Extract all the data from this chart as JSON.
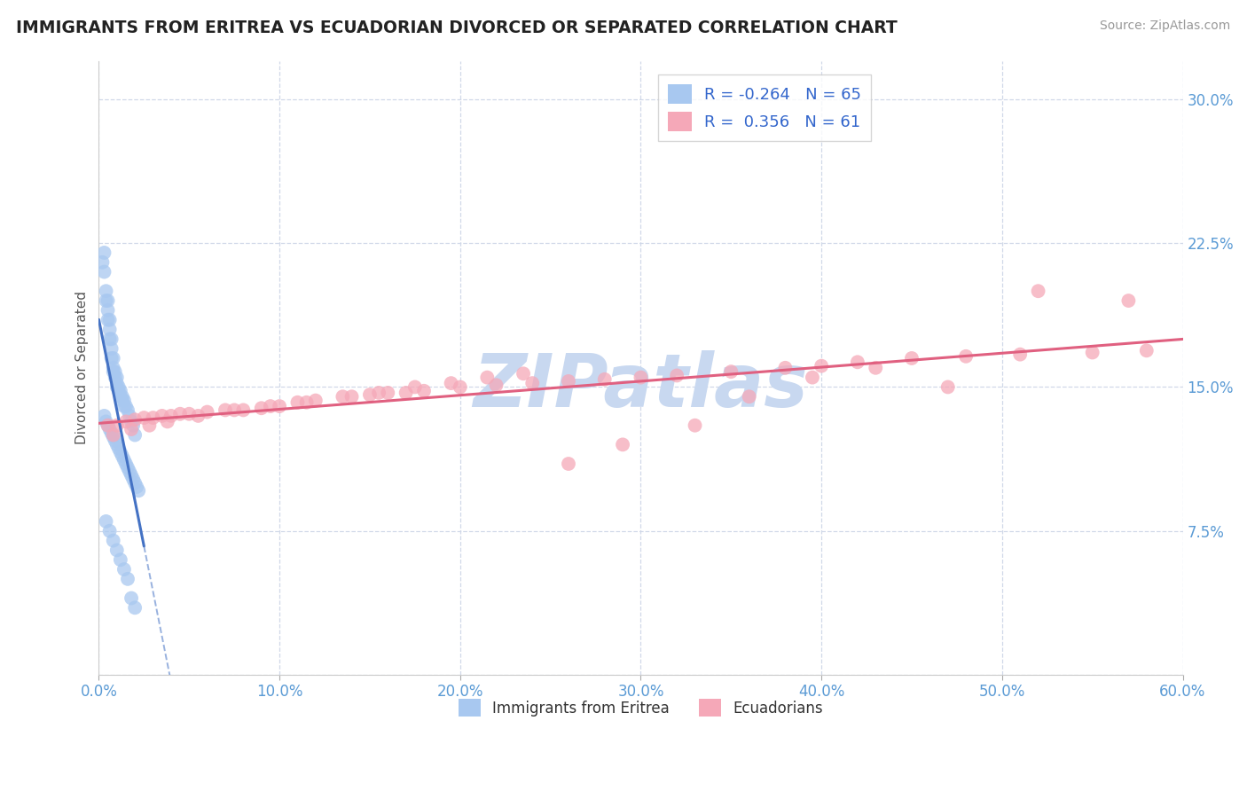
{
  "title": "IMMIGRANTS FROM ERITREA VS ECUADORIAN DIVORCED OR SEPARATED CORRELATION CHART",
  "source_text": "Source: ZipAtlas.com",
  "ylabel": "Divorced or Separated",
  "legend_label1": "Immigrants from Eritrea",
  "legend_label2": "Ecuadorians",
  "R1": -0.264,
  "N1": 65,
  "R2": 0.356,
  "N2": 61,
  "color1": "#a8c8f0",
  "color2": "#f5a8b8",
  "line_color1": "#4472c4",
  "line_color2": "#e06080",
  "watermark": "ZIPatlas",
  "watermark_color": "#c8d8f0",
  "xlim": [
    0.0,
    0.6
  ],
  "ylim": [
    0.0,
    0.32
  ],
  "xticks": [
    0.0,
    0.1,
    0.2,
    0.3,
    0.4,
    0.5,
    0.6
  ],
  "yticks": [
    0.075,
    0.15,
    0.225,
    0.3
  ],
  "background_color": "#ffffff",
  "grid_color": "#d0d8e8",
  "blue_x": [
    0.002,
    0.003,
    0.003,
    0.004,
    0.004,
    0.005,
    0.005,
    0.005,
    0.006,
    0.006,
    0.006,
    0.007,
    0.007,
    0.007,
    0.008,
    0.008,
    0.008,
    0.009,
    0.009,
    0.01,
    0.01,
    0.01,
    0.011,
    0.011,
    0.012,
    0.012,
    0.013,
    0.013,
    0.014,
    0.014,
    0.015,
    0.016,
    0.017,
    0.018,
    0.019,
    0.02,
    0.003,
    0.004,
    0.005,
    0.006,
    0.007,
    0.008,
    0.009,
    0.01,
    0.011,
    0.012,
    0.013,
    0.014,
    0.015,
    0.016,
    0.017,
    0.018,
    0.019,
    0.02,
    0.021,
    0.022,
    0.004,
    0.006,
    0.008,
    0.01,
    0.012,
    0.014,
    0.016,
    0.018,
    0.02
  ],
  "blue_y": [
    0.215,
    0.22,
    0.21,
    0.2,
    0.195,
    0.195,
    0.19,
    0.185,
    0.185,
    0.18,
    0.175,
    0.175,
    0.17,
    0.165,
    0.165,
    0.16,
    0.158,
    0.158,
    0.155,
    0.155,
    0.152,
    0.15,
    0.15,
    0.148,
    0.148,
    0.145,
    0.145,
    0.143,
    0.143,
    0.14,
    0.14,
    0.138,
    0.135,
    0.132,
    0.13,
    0.125,
    0.135,
    0.132,
    0.13,
    0.128,
    0.126,
    0.124,
    0.122,
    0.12,
    0.118,
    0.116,
    0.114,
    0.112,
    0.11,
    0.108,
    0.106,
    0.104,
    0.102,
    0.1,
    0.098,
    0.096,
    0.08,
    0.075,
    0.07,
    0.065,
    0.06,
    0.055,
    0.05,
    0.04,
    0.035
  ],
  "pink_x": [
    0.005,
    0.01,
    0.015,
    0.02,
    0.025,
    0.03,
    0.035,
    0.04,
    0.045,
    0.05,
    0.06,
    0.07,
    0.08,
    0.09,
    0.1,
    0.11,
    0.12,
    0.14,
    0.15,
    0.16,
    0.17,
    0.18,
    0.2,
    0.22,
    0.24,
    0.26,
    0.28,
    0.3,
    0.32,
    0.35,
    0.38,
    0.4,
    0.42,
    0.45,
    0.48,
    0.51,
    0.55,
    0.58,
    0.008,
    0.018,
    0.028,
    0.038,
    0.055,
    0.075,
    0.095,
    0.115,
    0.135,
    0.155,
    0.175,
    0.195,
    0.215,
    0.235,
    0.26,
    0.29,
    0.33,
    0.36,
    0.395,
    0.43,
    0.47,
    0.52,
    0.57
  ],
  "pink_y": [
    0.13,
    0.13,
    0.132,
    0.133,
    0.134,
    0.134,
    0.135,
    0.135,
    0.136,
    0.136,
    0.137,
    0.138,
    0.138,
    0.139,
    0.14,
    0.142,
    0.143,
    0.145,
    0.146,
    0.147,
    0.147,
    0.148,
    0.15,
    0.151,
    0.152,
    0.153,
    0.154,
    0.155,
    0.156,
    0.158,
    0.16,
    0.161,
    0.163,
    0.165,
    0.166,
    0.167,
    0.168,
    0.169,
    0.125,
    0.128,
    0.13,
    0.132,
    0.135,
    0.138,
    0.14,
    0.142,
    0.145,
    0.147,
    0.15,
    0.152,
    0.155,
    0.157,
    0.11,
    0.12,
    0.13,
    0.145,
    0.155,
    0.16,
    0.15,
    0.2,
    0.195
  ]
}
